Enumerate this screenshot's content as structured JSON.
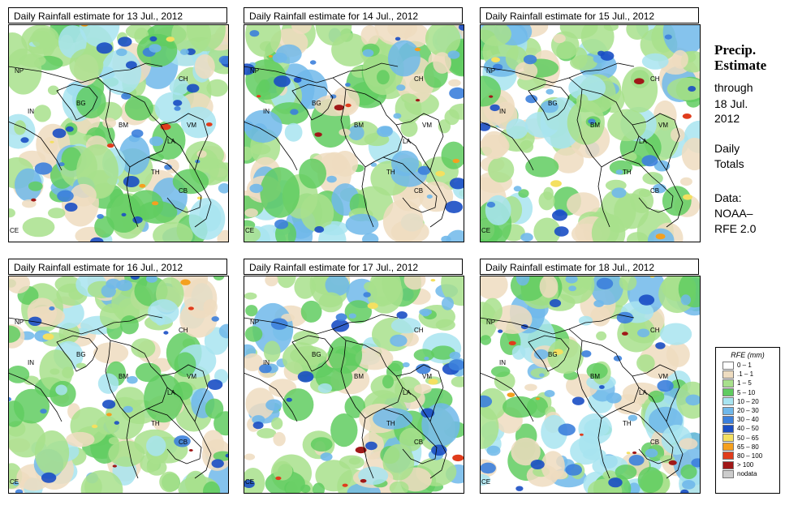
{
  "panels": [
    {
      "title": "Daily Rainfall estimate for  13 Jul., 2012",
      "intensity": 0.8,
      "seed": 13
    },
    {
      "title": "Daily Rainfall estimate for  14 Jul., 2012",
      "intensity": 0.75,
      "seed": 14
    },
    {
      "title": "Daily Rainfall estimate for  15 Jul., 2012",
      "intensity": 0.6,
      "seed": 15
    },
    {
      "title": "Daily Rainfall estimate for  16 Jul., 2012",
      "intensity": 0.55,
      "seed": 16
    },
    {
      "title": "Daily Rainfall estimate for  17 Jul., 2012",
      "intensity": 0.7,
      "seed": 17
    },
    {
      "title": "Daily Rainfall estimate for  18 Jul., 2012",
      "intensity": 0.85,
      "seed": 18
    }
  ],
  "country_labels": [
    "NP",
    "CH",
    "IN",
    "BG",
    "BM",
    "VM",
    "LA",
    "TH",
    "CB",
    "CE"
  ],
  "sidebar": {
    "heading_line1": "Precip.",
    "heading_line2": "Estimate",
    "through": "through",
    "date_line1": "18 Jul.",
    "date_line2": "2012",
    "totals_line1": "Daily",
    "totals_line2": "Totals",
    "data_line1": "Data:",
    "data_line2": "NOAA–",
    "data_line3": "RFE 2.0"
  },
  "legend": {
    "title": "RFE (mm)",
    "items": [
      {
        "label": "0 – 1",
        "color": "#ffffff"
      },
      {
        "label": ".1 – 1",
        "color": "#eedcc0"
      },
      {
        "label": "1 – 5",
        "color": "#a8e08c"
      },
      {
        "label": "5 – 10",
        "color": "#60cc60"
      },
      {
        "label": "10 – 20",
        "color": "#a8e4f0"
      },
      {
        "label": "20 – 30",
        "color": "#70b8ea"
      },
      {
        "label": "30 – 40",
        "color": "#3c80dc"
      },
      {
        "label": "40 – 50",
        "color": "#1a4ec4"
      },
      {
        "label": "50 – 65",
        "color": "#f4e060"
      },
      {
        "label": "65 – 80",
        "color": "#f4a020"
      },
      {
        "label": "80 – 100",
        "color": "#e03c1c"
      },
      {
        "label": "> 100",
        "color": "#a01818"
      },
      {
        "label": "nodata",
        "color": "#cccccc"
      }
    ]
  }
}
